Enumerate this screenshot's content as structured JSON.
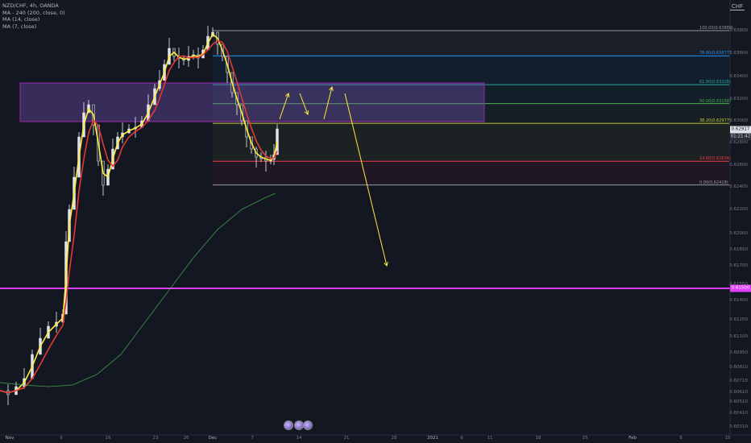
{
  "legend": {
    "symbol_line": "NZD/CHF, 4h, OANDA",
    "ma_lines": [
      "MA - 240 (200, close, 0)",
      "MA (14, close)",
      "MA (7, close)"
    ]
  },
  "currency": "CHF",
  "y_axis": {
    "ticks": [
      "0.63800",
      "0.63600",
      "0.63400",
      "0.63200",
      "0.63000",
      "0.62800",
      "0.62600",
      "0.62400",
      "0.62200",
      "0.62000",
      "0.61850",
      "0.61700",
      "0.61550",
      "0.61400",
      "0.61250",
      "0.61100",
      "0.60950",
      "0.60810",
      "0.60710",
      "0.60610",
      "0.60510",
      "0.60410",
      "0.60310"
    ],
    "ticks_values": [
      0.638,
      0.636,
      0.634,
      0.632,
      0.63,
      0.628,
      0.626,
      0.624,
      0.622,
      0.62,
      0.6185,
      0.617,
      0.6155,
      0.614,
      0.6125,
      0.611,
      0.6095,
      0.6081,
      0.6071,
      0.6061,
      0.6051,
      0.6041,
      0.6031
    ]
  },
  "x_axis": {
    "ticks": [
      "Nov",
      "9",
      "16",
      "23",
      "26",
      "Dec",
      "7",
      "14",
      "21",
      "28",
      "2021",
      "6",
      "11",
      "18",
      "25",
      "Feb",
      "8",
      "15"
    ]
  },
  "price_tags": {
    "current_price": "0.62917",
    "countdown": "01:21:42",
    "level_price": "0.61500"
  },
  "fib_levels": [
    {
      "label": "100.00(0.63889)",
      "color": "#9598a1",
      "price": 0.63889
    },
    {
      "label": "78.60(0.63577)",
      "color": "#2196f3",
      "price": 0.63577
    },
    {
      "label": "61.80(0.63328)",
      "color": "#26a69a",
      "price": 0.63328
    },
    {
      "label": "50.00(0.63158)",
      "color": "#4caf50",
      "price": 0.63158
    },
    {
      "label": "38.20(0.62977)",
      "color": "#c0ca33",
      "price": 0.62977
    },
    {
      "label": "14.60(0.62634)",
      "color": "#f23645",
      "price": 0.62634
    },
    {
      "label": "0.00(0.62418)",
      "color": "#9598a1",
      "price": 0.62418
    }
  ],
  "colors": {
    "background": "#131722",
    "resistance_box": "#7e57c2",
    "support_line": "#e040fb",
    "ma7": "#ffeb3b",
    "ma14": "#e53935",
    "ma200": "#4caf50",
    "projection_arrow": "#ffeb3b"
  },
  "toolbar_icons": [
    "replay-icon",
    "compare-icon",
    "indicator-icon"
  ]
}
